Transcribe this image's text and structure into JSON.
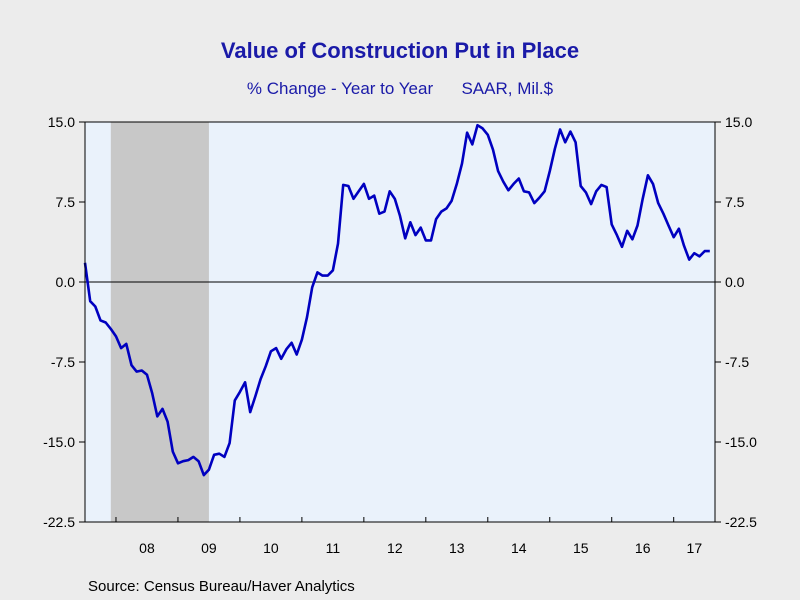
{
  "title": "Value of Construction Put in Place",
  "subtitle_left": "% Change - Year to Year",
  "subtitle_right": "SAAR, Mil.$",
  "source": "Source:  Census Bureau/Haver Analytics",
  "colors": {
    "line": "#0000c0",
    "plot_bg": "#eaf2fb",
    "recession": "#c8c8c8",
    "zero_line": "#000000"
  },
  "chart_data": {
    "type": "line",
    "title": "Value of Construction Put in Place",
    "subtitle": "% Change - Year to Year    SAAR, Mil.$",
    "xlabel": "",
    "ylabel": "",
    "ylim": [
      -22.5,
      15.0
    ],
    "y_ticks": [
      15.0,
      7.5,
      0.0,
      -7.5,
      -15.0,
      -22.5
    ],
    "y_tick_labels": [
      "15.0",
      "7.5",
      "0.0",
      "-7.5",
      "-15.0",
      "-22.5"
    ],
    "x_start": "2007-07",
    "x_end": "2017-08",
    "x_tick_labels": [
      "08",
      "09",
      "10",
      "11",
      "12",
      "13",
      "14",
      "15",
      "16",
      "17"
    ],
    "grid": false,
    "recession_shading": {
      "start": "2007-12",
      "end": "2009-06"
    },
    "series": [
      {
        "x": [
          "2007-07",
          "2007-08",
          "2007-09",
          "2007-10",
          "2007-11",
          "2007-12",
          "2008-01",
          "2008-02",
          "2008-03",
          "2008-04",
          "2008-05",
          "2008-06",
          "2008-07",
          "2008-08",
          "2008-09",
          "2008-10",
          "2008-11",
          "2008-12",
          "2009-01",
          "2009-02",
          "2009-03",
          "2009-04",
          "2009-05",
          "2009-06",
          "2009-07",
          "2009-08",
          "2009-09",
          "2009-10",
          "2009-11",
          "2009-12",
          "2010-01",
          "2010-02",
          "2010-03",
          "2010-04",
          "2010-05",
          "2010-06",
          "2010-07",
          "2010-08",
          "2010-09",
          "2010-10",
          "2010-11",
          "2010-12",
          "2011-01",
          "2011-02",
          "2011-03",
          "2011-04",
          "2011-05",
          "2011-06",
          "2011-07",
          "2011-08",
          "2011-09",
          "2011-10",
          "2011-11",
          "2011-12",
          "2012-01",
          "2012-02",
          "2012-03",
          "2012-04",
          "2012-05",
          "2012-06",
          "2012-07",
          "2012-08",
          "2012-09",
          "2012-10",
          "2012-11",
          "2012-12",
          "2013-01",
          "2013-02",
          "2013-03",
          "2013-04",
          "2013-05",
          "2013-06",
          "2013-07",
          "2013-08",
          "2013-09",
          "2013-10",
          "2013-11",
          "2013-12",
          "2014-01",
          "2014-02",
          "2014-03",
          "2014-04",
          "2014-05",
          "2014-06",
          "2014-07",
          "2014-08",
          "2014-09",
          "2014-10",
          "2014-11",
          "2014-12",
          "2015-01",
          "2015-02",
          "2015-03",
          "2015-04",
          "2015-05",
          "2015-06",
          "2015-07",
          "2015-08",
          "2015-09",
          "2015-10",
          "2015-11",
          "2015-12",
          "2016-01",
          "2016-02",
          "2016-03",
          "2016-04",
          "2016-05",
          "2016-06",
          "2016-07",
          "2016-08",
          "2016-09",
          "2016-10",
          "2016-11",
          "2016-12",
          "2017-01",
          "2017-02",
          "2017-03",
          "2017-04",
          "2017-05",
          "2017-06",
          "2017-07",
          "2017-08"
        ],
        "values": [
          1.8,
          -1.8,
          -2.3,
          -3.6,
          -3.8,
          -4.4,
          -5.1,
          -6.2,
          -5.8,
          -7.8,
          -8.4,
          -8.3,
          -8.7,
          -10.4,
          -12.6,
          -11.9,
          -13.1,
          -15.9,
          -17.0,
          -16.8,
          -16.7,
          -16.4,
          -16.8,
          -18.1,
          -17.6,
          -16.2,
          -16.1,
          -16.4,
          -15.1,
          -11.1,
          -10.3,
          -9.4,
          -12.2,
          -10.7,
          -9.1,
          -7.9,
          -6.5,
          -6.2,
          -7.2,
          -6.3,
          -5.7,
          -6.8,
          -5.4,
          -3.3,
          -0.5,
          0.9,
          0.6,
          0.6,
          1.1,
          3.6,
          9.1,
          9.0,
          7.8,
          8.5,
          9.2,
          7.8,
          8.1,
          6.4,
          6.6,
          8.5,
          7.8,
          6.2,
          4.1,
          5.6,
          4.4,
          5.1,
          3.9,
          3.9,
          5.9,
          6.6,
          6.9,
          7.6,
          9.2,
          11.1,
          14.0,
          12.9,
          14.7,
          14.4,
          13.8,
          12.4,
          10.4,
          9.4,
          8.6,
          9.2,
          9.7,
          8.5,
          8.4,
          7.4,
          7.9,
          8.5,
          10.4,
          12.5,
          14.3,
          13.1,
          14.1,
          13.1,
          9.0,
          8.4,
          7.3,
          8.5,
          9.1,
          8.9,
          5.4,
          4.4,
          3.3,
          4.8,
          4.0,
          5.3,
          7.8,
          10.0,
          9.2,
          7.4,
          6.4,
          5.3,
          4.2,
          5.0,
          3.4,
          2.1,
          2.7,
          2.4,
          2.9,
          2.9
        ]
      }
    ]
  }
}
